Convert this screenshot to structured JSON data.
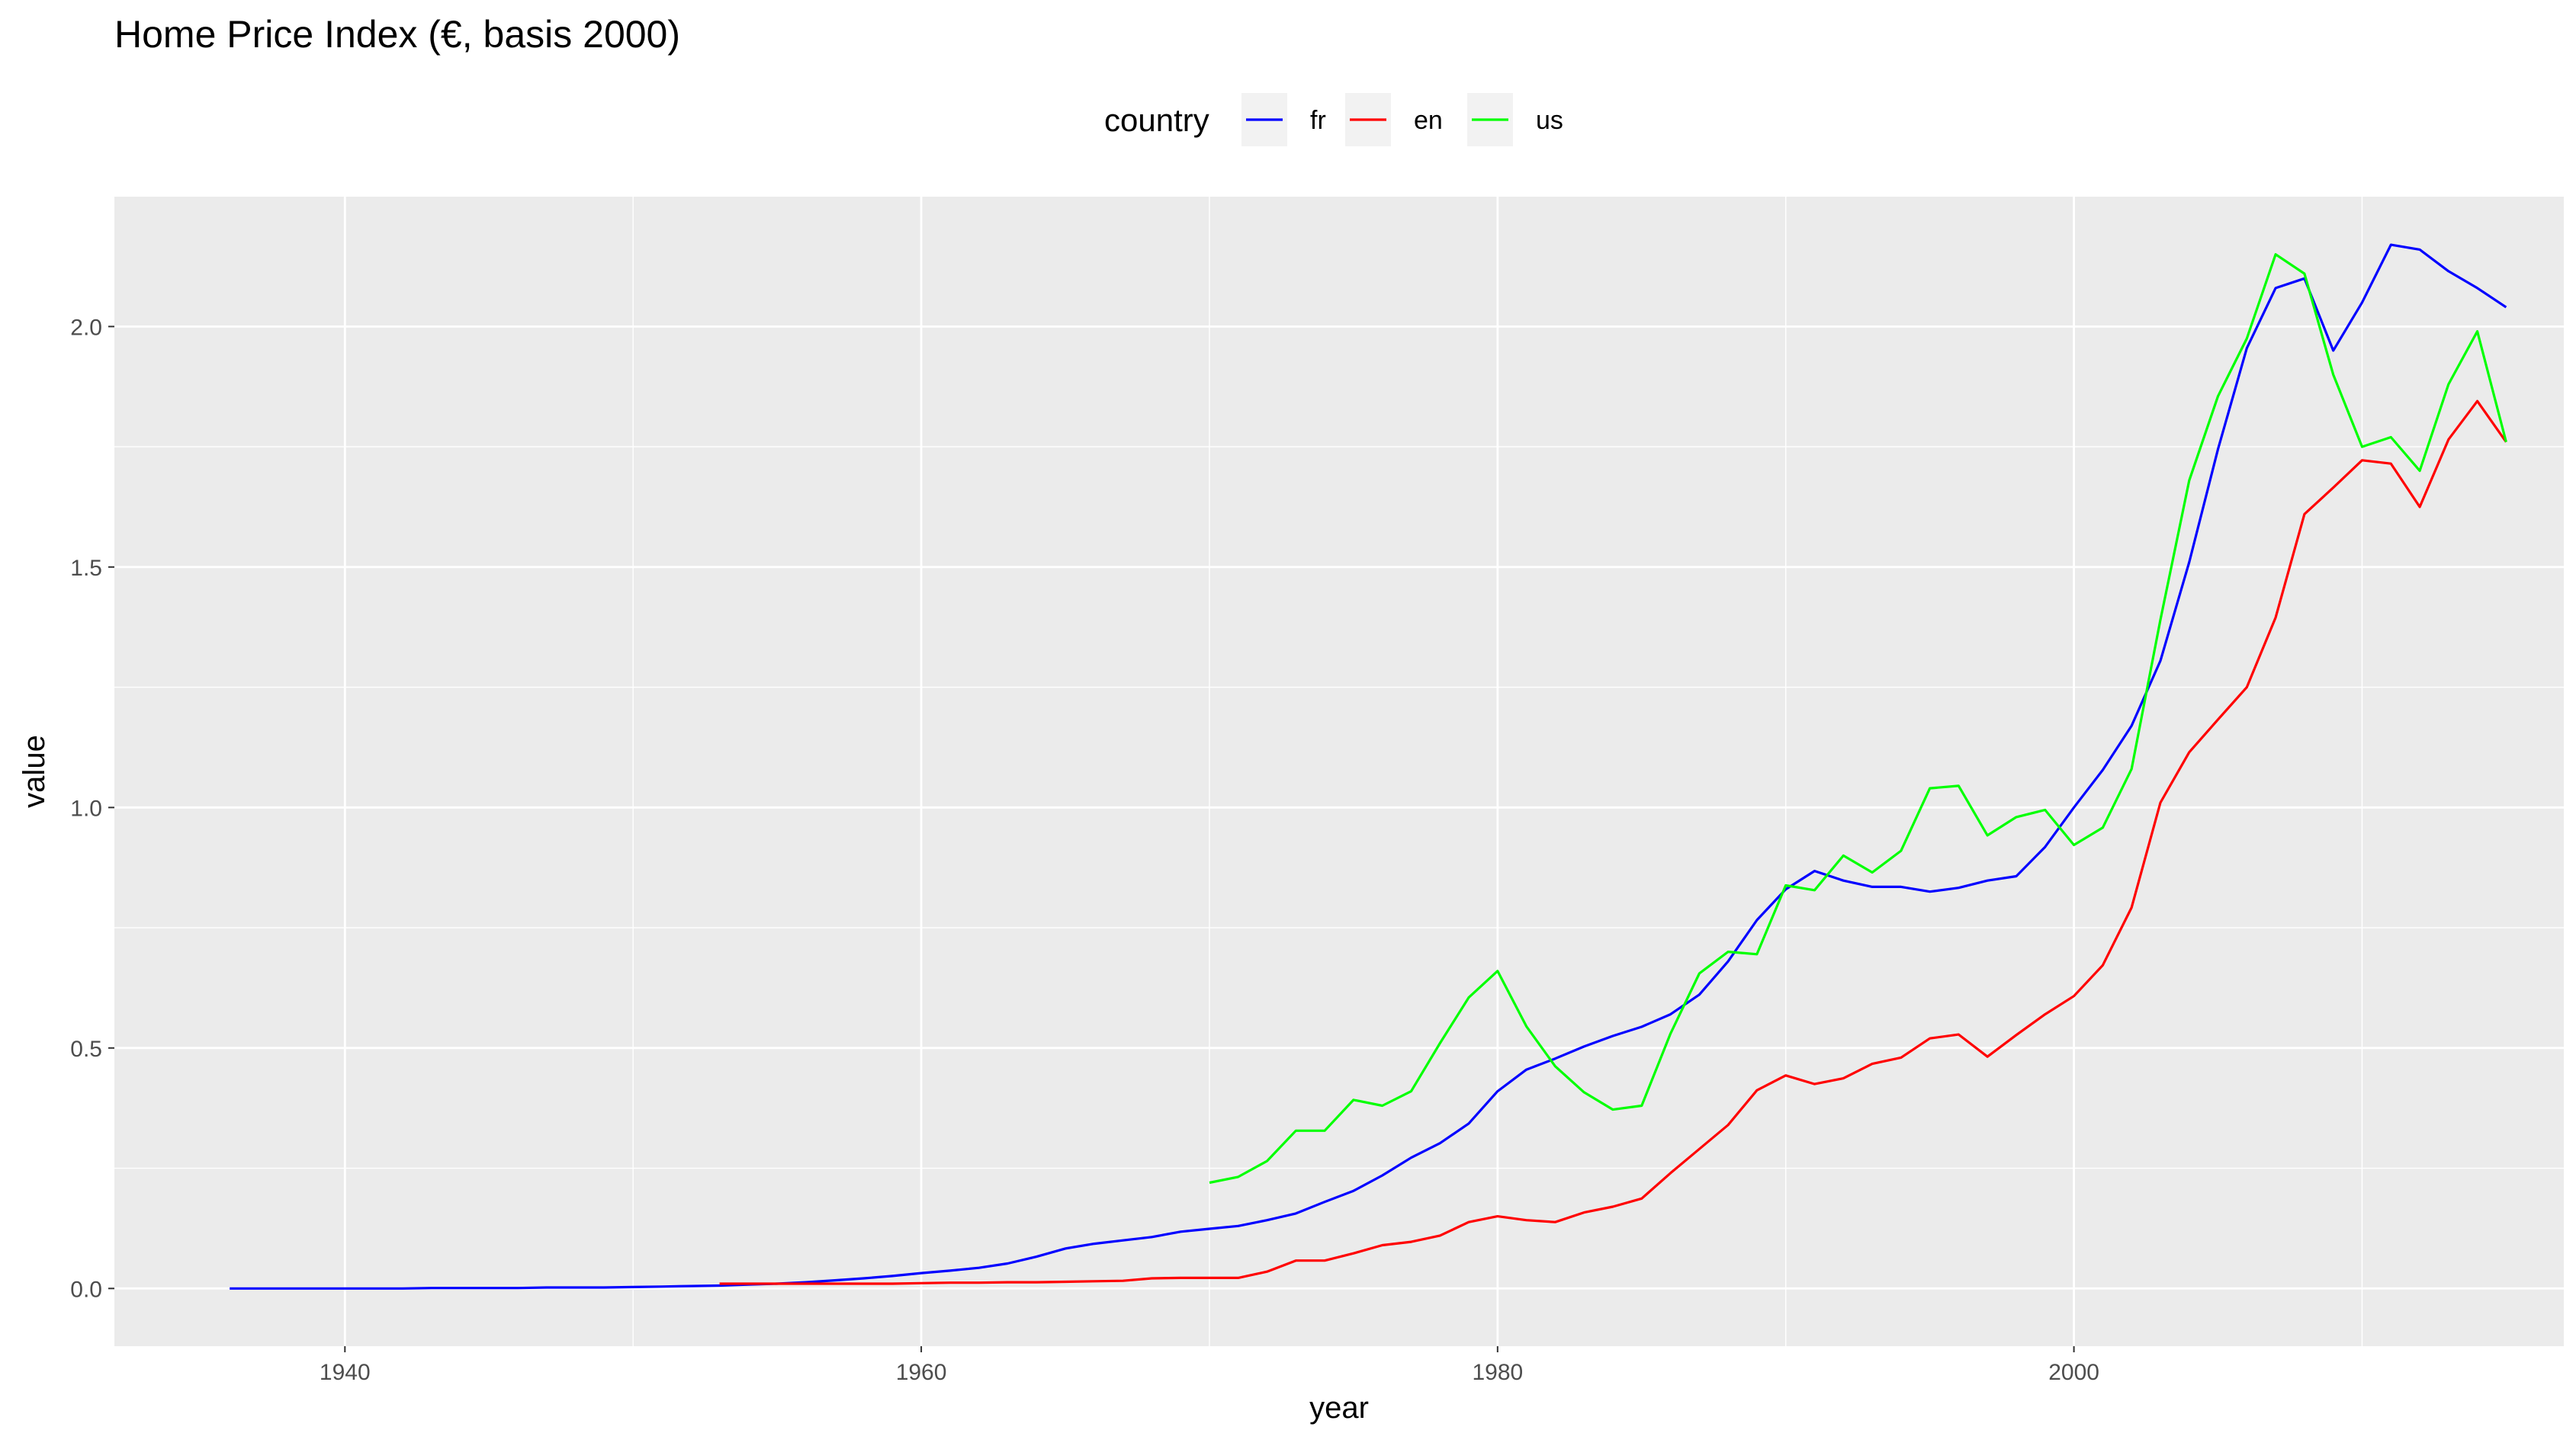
{
  "chart_data": {
    "type": "line",
    "title": "Home Price Index (€, basis 2000)",
    "xlabel": "year",
    "ylabel": "value",
    "xlim": [
      1932,
      2017
    ],
    "ylim": [
      -0.12,
      2.27
    ],
    "x_ticks": [
      1940,
      1960,
      1980,
      2000
    ],
    "x_tick_labels": [
      "1940",
      "1960",
      "1980",
      "2000"
    ],
    "x_minor_ticks": [
      1950,
      1970,
      1990,
      2010
    ],
    "y_ticks": [
      0.0,
      0.5,
      1.0,
      1.5,
      2.0
    ],
    "y_tick_labels": [
      "0.0",
      "0.5",
      "1.0",
      "1.5",
      "2.0"
    ],
    "y_minor_ticks": [
      0.25,
      0.75,
      1.25,
      1.75
    ],
    "grid": true,
    "legend": {
      "title": "country",
      "position": "top"
    },
    "series": [
      {
        "name": "fr",
        "color": "#0000ff",
        "x": [
          1936,
          1937,
          1938,
          1939,
          1940,
          1941,
          1942,
          1943,
          1944,
          1945,
          1946,
          1947,
          1948,
          1949,
          1950,
          1951,
          1952,
          1953,
          1954,
          1955,
          1956,
          1957,
          1958,
          1959,
          1960,
          1961,
          1962,
          1963,
          1964,
          1965,
          1966,
          1967,
          1968,
          1969,
          1970,
          1971,
          1972,
          1973,
          1974,
          1975,
          1976,
          1977,
          1978,
          1979,
          1980,
          1981,
          1982,
          1983,
          1984,
          1985,
          1986,
          1987,
          1988,
          1989,
          1990,
          1991,
          1992,
          1993,
          1994,
          1995,
          1996,
          1997,
          1998,
          1999,
          2000,
          2001,
          2002,
          2003,
          2004,
          2005,
          2006,
          2007,
          2008,
          2009,
          2010,
          2011,
          2012,
          2013,
          2014,
          2015
        ],
        "y": [
          0.0,
          0.0,
          0.0,
          0.0,
          0.0,
          0.0,
          0.0,
          0.001,
          0.001,
          0.001,
          0.001,
          0.002,
          0.002,
          0.002,
          0.003,
          0.004,
          0.005,
          0.006,
          0.008,
          0.01,
          0.013,
          0.017,
          0.021,
          0.026,
          0.032,
          0.037,
          0.043,
          0.052,
          0.066,
          0.083,
          0.093,
          0.1,
          0.107,
          0.118,
          0.124,
          0.13,
          0.142,
          0.156,
          0.18,
          0.203,
          0.235,
          0.272,
          0.302,
          0.343,
          0.41,
          0.455,
          0.478,
          0.503,
          0.525,
          0.544,
          0.57,
          0.611,
          0.68,
          0.766,
          0.83,
          0.868,
          0.848,
          0.835,
          0.835,
          0.825,
          0.833,
          0.848,
          0.857,
          0.918,
          1.0,
          1.078,
          1.17,
          1.305,
          1.51,
          1.745,
          1.955,
          2.08,
          2.1,
          1.95,
          2.05,
          2.17,
          2.16,
          2.115,
          2.08,
          2.04
        ]
      },
      {
        "name": "en",
        "color": "#ff0000",
        "x": [
          1953,
          1954,
          1955,
          1956,
          1957,
          1958,
          1959,
          1960,
          1961,
          1962,
          1963,
          1964,
          1965,
          1966,
          1967,
          1968,
          1969,
          1970,
          1971,
          1972,
          1973,
          1974,
          1975,
          1976,
          1977,
          1978,
          1979,
          1980,
          1981,
          1982,
          1983,
          1984,
          1985,
          1986,
          1987,
          1988,
          1989,
          1990,
          1991,
          1992,
          1993,
          1994,
          1995,
          1996,
          1997,
          1998,
          1999,
          2000,
          2001,
          2002,
          2003,
          2004,
          2005,
          2006,
          2007,
          2008,
          2009,
          2010,
          2011,
          2012,
          2013,
          2014,
          2015
        ],
        "y": [
          0.01,
          0.01,
          0.01,
          0.01,
          0.01,
          0.01,
          0.01,
          0.011,
          0.012,
          0.012,
          0.013,
          0.013,
          0.014,
          0.015,
          0.016,
          0.021,
          0.022,
          0.022,
          0.022,
          0.035,
          0.058,
          0.058,
          0.073,
          0.09,
          0.097,
          0.11,
          0.138,
          0.15,
          0.142,
          0.138,
          0.158,
          0.17,
          0.187,
          0.24,
          0.29,
          0.34,
          0.412,
          0.443,
          0.425,
          0.437,
          0.467,
          0.48,
          0.52,
          0.528,
          0.482,
          0.527,
          0.57,
          0.608,
          0.672,
          0.792,
          1.01,
          1.115,
          1.183,
          1.25,
          1.395,
          1.61,
          1.665,
          1.722,
          1.715,
          1.625,
          1.765,
          1.845,
          1.76
        ]
      },
      {
        "name": "us",
        "color": "#00ff00",
        "x": [
          1970,
          1971,
          1972,
          1973,
          1974,
          1975,
          1976,
          1977,
          1978,
          1979,
          1980,
          1981,
          1982,
          1983,
          1984,
          1985,
          1986,
          1987,
          1988,
          1989,
          1990,
          1991,
          1992,
          1993,
          1994,
          1995,
          1996,
          1997,
          1998,
          1999,
          2000,
          2001,
          2002,
          2003,
          2004,
          2005,
          2006,
          2007,
          2008,
          2009,
          2010,
          2011,
          2012,
          2013,
          2014,
          2015
        ],
        "y": [
          0.22,
          0.232,
          0.265,
          0.328,
          0.328,
          0.392,
          0.38,
          0.41,
          0.51,
          0.605,
          0.66,
          0.545,
          0.462,
          0.408,
          0.372,
          0.38,
          0.53,
          0.655,
          0.7,
          0.695,
          0.838,
          0.828,
          0.9,
          0.865,
          0.91,
          1.04,
          1.045,
          0.942,
          0.98,
          0.995,
          0.922,
          0.958,
          1.08,
          1.39,
          1.68,
          1.855,
          1.975,
          2.15,
          2.11,
          1.9,
          1.75,
          1.77,
          1.7,
          1.88,
          1.99,
          1.76
        ]
      }
    ]
  }
}
